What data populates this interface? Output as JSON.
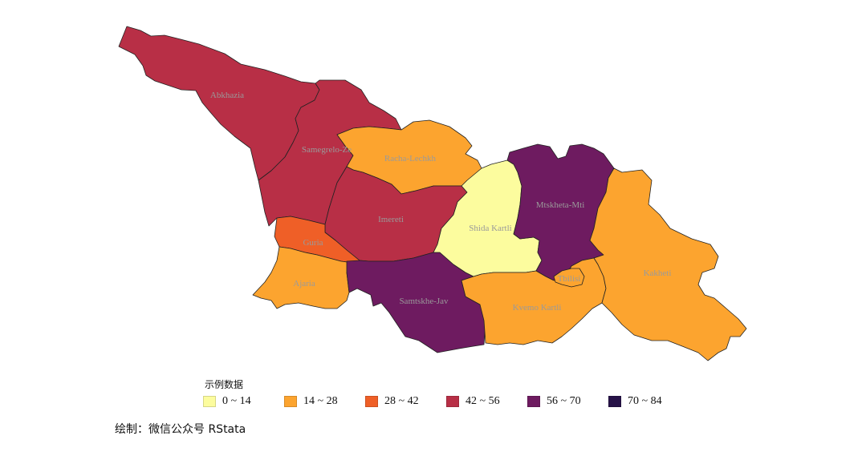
{
  "legend": {
    "title": "示例数据",
    "items": [
      {
        "label": "0 ~ 14",
        "color": "#fcfc9e"
      },
      {
        "label": "14 ~ 28",
        "color": "#fca42f"
      },
      {
        "label": "28 ~ 42",
        "color": "#ef5f27"
      },
      {
        "label": "42 ~ 56",
        "color": "#b82f46"
      },
      {
        "label": "56 ~ 70",
        "color": "#6e1b60"
      },
      {
        "label": "70 ~ 84",
        "color": "#271348"
      }
    ]
  },
  "caption": "绘制：微信公众号 RStata",
  "regions": [
    {
      "name": "Abkhazia",
      "label": "Abkhazia",
      "class_index": 3,
      "color": "#b82f46"
    },
    {
      "name": "Samegrelo-Zemo Svaneti",
      "label": "Samegrelo-Ze",
      "class_index": 3,
      "color": "#b82f46"
    },
    {
      "name": "Racha-Lechkhumi",
      "label": "Racha-Lechkh",
      "class_index": 1,
      "color": "#fca42f"
    },
    {
      "name": "Imereti",
      "label": "Imereti",
      "class_index": 3,
      "color": "#b82f46"
    },
    {
      "name": "Guria",
      "label": "Guria",
      "class_index": 2,
      "color": "#ef5f27"
    },
    {
      "name": "Ajaria",
      "label": "Ajaria",
      "class_index": 1,
      "color": "#fca42f"
    },
    {
      "name": "Samtskhe-Javakheti",
      "label": "Samtskhe-Jav",
      "class_index": 4,
      "color": "#6e1b60"
    },
    {
      "name": "Shida Kartli",
      "label": "Shida Kartli",
      "class_index": 0,
      "color": "#fcfc9e"
    },
    {
      "name": "Mtskheta-Mtianeti",
      "label": "Mtskheta-Mti",
      "class_index": 4,
      "color": "#6e1b60"
    },
    {
      "name": "Kvemo Kartli",
      "label": "Kvemo Kartli",
      "class_index": 1,
      "color": "#fca42f"
    },
    {
      "name": "Tbilisi",
      "label": "Tbilisi",
      "class_index": 1,
      "color": "#fca42f"
    },
    {
      "name": "Kakheti",
      "label": "Kakheti",
      "class_index": 1,
      "color": "#fca42f"
    }
  ]
}
